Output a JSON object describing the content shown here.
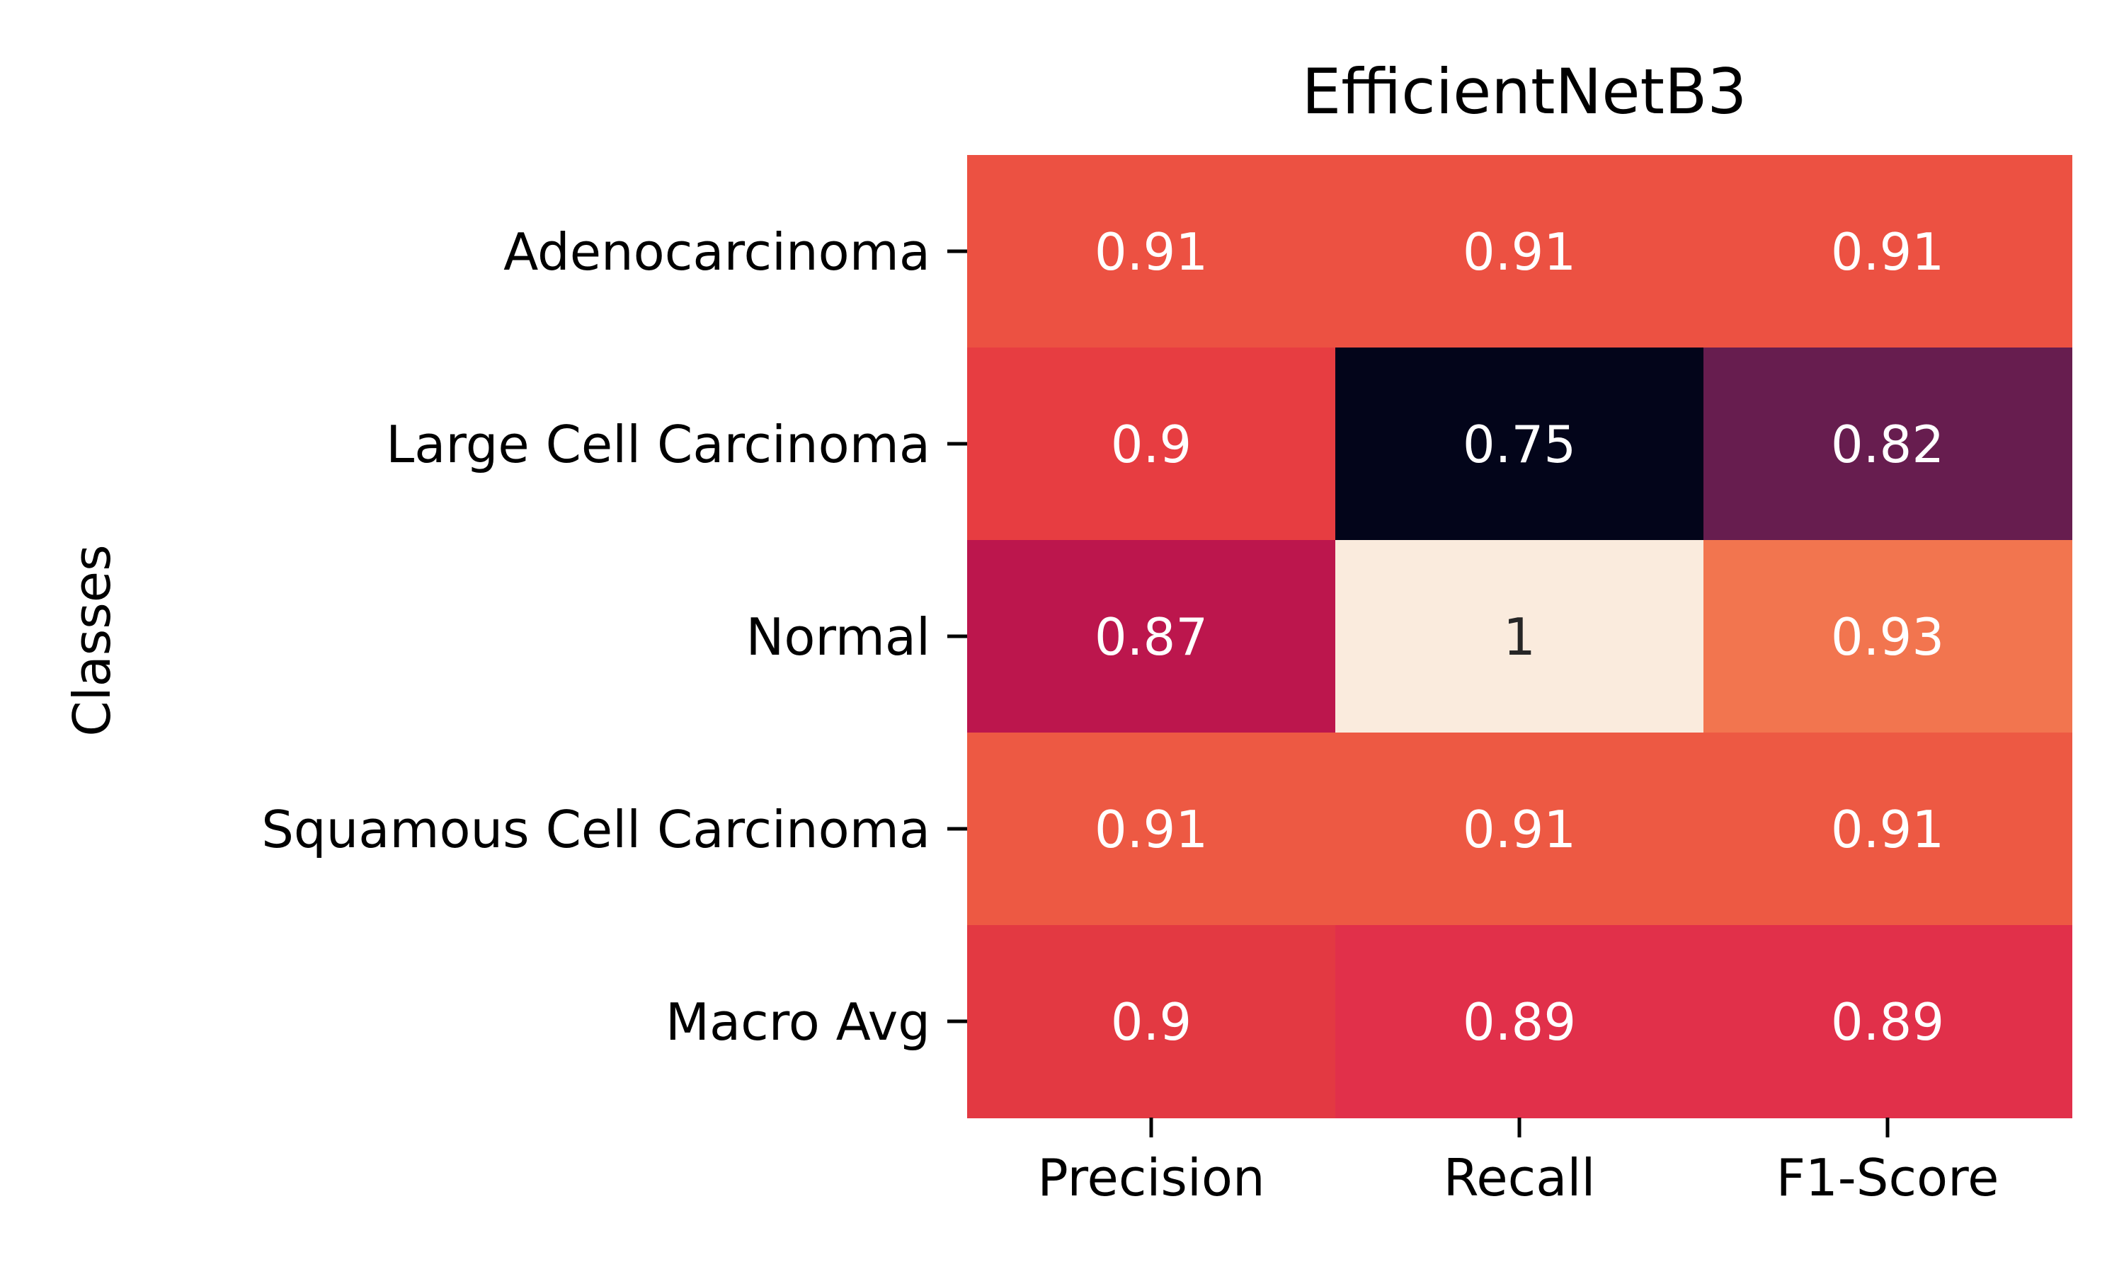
{
  "chart_data": {
    "type": "heatmap",
    "title": "EfficientNetB3",
    "xlabel": "",
    "ylabel": "Classes",
    "x_categories": [
      "Precision",
      "Recall",
      "F1-Score"
    ],
    "y_categories": [
      "Adenocarcinoma",
      "Large Cell Carcinoma",
      "Normal",
      "Squamous Cell Carcinoma",
      "Macro Avg"
    ],
    "values": [
      [
        0.91,
        0.91,
        0.91
      ],
      [
        0.9,
        0.75,
        0.82
      ],
      [
        0.87,
        1,
        0.93
      ],
      [
        0.91,
        0.91,
        0.91
      ],
      [
        0.9,
        0.89,
        0.89
      ]
    ],
    "cell_colors": [
      [
        "#ec5142",
        "#ec5142",
        "#ec5142"
      ],
      [
        "#e73d41",
        "#03051a",
        "#671d4f"
      ],
      [
        "#bc164d",
        "#faebdd",
        "#f2754f"
      ],
      [
        "#ed5943",
        "#ed5943",
        "#ed5943"
      ],
      [
        "#e33942",
        "#e1304a",
        "#e1304a"
      ]
    ],
    "text_colors": [
      [
        "#ffffff",
        "#ffffff",
        "#ffffff"
      ],
      [
        "#ffffff",
        "#ffffff",
        "#ffffff"
      ],
      [
        "#ffffff",
        "#262626",
        "#ffffff"
      ],
      [
        "#ffffff",
        "#ffffff",
        "#ffffff"
      ],
      [
        "#ffffff",
        "#ffffff",
        "#ffffff"
      ]
    ],
    "colorbar": false,
    "grid": false
  }
}
